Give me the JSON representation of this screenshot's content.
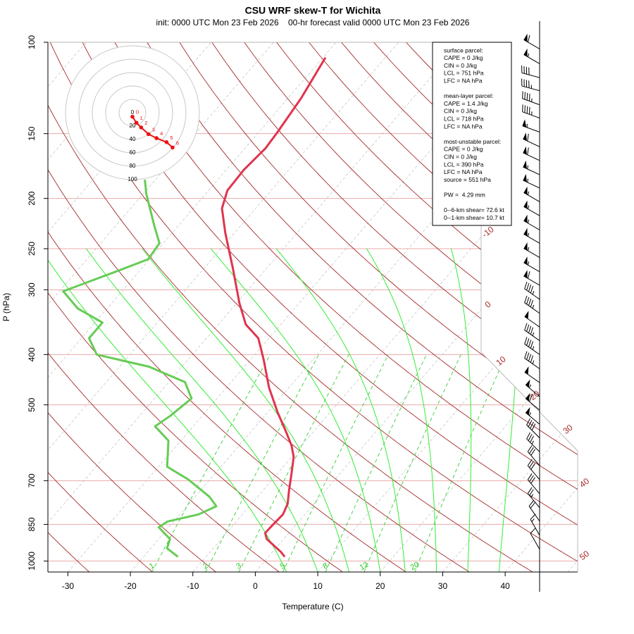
{
  "chart_data": {
    "type": "skewt",
    "title": "CSU WRF skew-T for Wichita",
    "subtitle": "init: 0000 UTC Mon 23 Feb 2026    00-hr forecast valid 0000 UTC Mon 23 Feb 2026",
    "xlabel": "Temperature (C)",
    "ylabel": "P (hPa)",
    "xlim": [
      -33.2,
      51.6
    ],
    "xticks": [
      -30,
      -20,
      -10,
      0,
      10,
      20,
      30,
      40
    ],
    "ylim": [
      1050,
      100
    ],
    "yticks": [
      100,
      150,
      200,
      250,
      300,
      400,
      500,
      700,
      850,
      1000
    ],
    "log_y": true,
    "series": [
      {
        "color": "#e0344e",
        "pressure": [
          981,
          960,
          907,
          883,
          852,
          813,
          776,
          729,
          685,
          630,
          599,
          562,
          517,
          463,
          409,
          372,
          350,
          318,
          272,
          233,
          209,
          193,
          176,
          160,
          149,
          128,
          107
        ],
        "values": [
          2.6,
          1.3,
          -2.7,
          -3.8,
          -3.7,
          -3.5,
          -4.2,
          -5.9,
          -7.5,
          -9.7,
          -11.6,
          -14.5,
          -18.4,
          -23.2,
          -27.9,
          -31.7,
          -35.6,
          -39.6,
          -45.5,
          -51.5,
          -55.4,
          -57.0,
          -57.2,
          -56.7,
          -57.0,
          -57.9,
          -59.6
        ]
      },
      {
        "color": "#66cc55",
        "pressure": [
          981,
          945,
          907,
          861,
          839,
          813,
          784,
          752,
          696,
          658,
          586,
          550,
          525,
          486,
          452,
          422,
          400,
          372,
          347,
          326,
          302,
          276,
          262,
          244,
          226,
          196,
          184
        ],
        "values": [
          -14.5,
          -17.4,
          -18.2,
          -21.6,
          -21.0,
          -17.0,
          -15.3,
          -17.7,
          -23.5,
          -28.6,
          -32.0,
          -36.1,
          -35.1,
          -34.1,
          -37.4,
          -45.3,
          -55.3,
          -58.8,
          -58.8,
          -64.7,
          -69.4,
          -63.5,
          -60.2,
          -60.6,
          -63.8,
          -69.5,
          -71.7
        ]
      }
    ],
    "isotherm_labels": [
      -10,
      0,
      10,
      20,
      30,
      40,
      50
    ],
    "dry_adiabats": [
      -40,
      -30,
      -20,
      -10,
      0,
      10,
      20,
      30,
      40,
      50,
      60,
      70,
      80,
      90,
      100,
      110,
      120,
      130,
      140,
      150,
      160,
      170,
      180,
      190
    ],
    "moist_adiabats": [
      5,
      10,
      15,
      20,
      24,
      29,
      34,
      39
    ],
    "moist_adiabats_top": 250,
    "mixing_ratios": [
      1,
      2,
      3,
      5,
      8,
      12,
      20
    ],
    "mixing_ratio_top": 400,
    "winds": {
      "pressure": [
        103,
        110,
        117,
        124,
        132,
        140,
        149,
        159,
        169,
        180,
        191,
        203,
        216,
        230,
        244,
        260,
        277,
        294,
        313,
        333,
        354,
        376,
        400,
        426,
        453,
        482,
        512,
        545,
        579,
        616,
        655,
        697,
        742,
        789,
        838,
        892,
        949
      ],
      "speed": [
        60,
        55,
        40,
        45,
        45,
        45,
        55,
        60,
        60,
        55,
        55,
        55,
        55,
        55,
        55,
        55,
        55,
        60,
        45,
        45,
        50,
        45,
        45,
        45,
        50,
        55,
        60,
        55,
        40,
        35,
        30,
        30,
        30,
        25,
        20,
        15,
        10
      ],
      "direction": [
        300,
        300,
        285,
        285,
        290,
        290,
        290,
        295,
        295,
        295,
        295,
        300,
        300,
        300,
        300,
        300,
        300,
        300,
        305,
        305,
        305,
        305,
        305,
        305,
        305,
        310,
        310,
        310,
        315,
        315,
        320,
        320,
        320,
        320,
        325,
        330,
        330
      ]
    },
    "hodograph": {
      "rings": [
        0,
        20,
        40,
        60,
        80,
        100
      ],
      "labels": [
        0,
        1,
        2,
        3,
        4,
        5,
        6
      ],
      "u": [
        0,
        6,
        13,
        24,
        36,
        51,
        60
      ],
      "v": [
        -6,
        -15,
        -22,
        -32,
        -38,
        -44,
        -52
      ],
      "color": "#ee1111"
    },
    "info_box": [
      [
        "surface parcel:",
        "CAPE = 0 J/kg",
        "CIN = 0 J/kg",
        "LCL = 751 hPa",
        "LFC = NA hPa"
      ],
      [
        "mean-layer parcel:",
        "CAPE = 1.4 J/kg",
        "CIN = 0 J/kg",
        "LCL = 718 hPa",
        "LFC = NA hPa"
      ],
      [
        "most-unstable parcel:",
        "CAPE = 0 J/kg",
        "CIN = 0 J/kg",
        "LCL = 390 hPa",
        "LFC = NA hPa",
        "source = 551 hPa"
      ],
      [
        "PW =  4.29 mm"
      ],
      [
        "0--6-km shear= 72.6 kt",
        "0--1-km shear= 10.7 kt"
      ]
    ]
  }
}
